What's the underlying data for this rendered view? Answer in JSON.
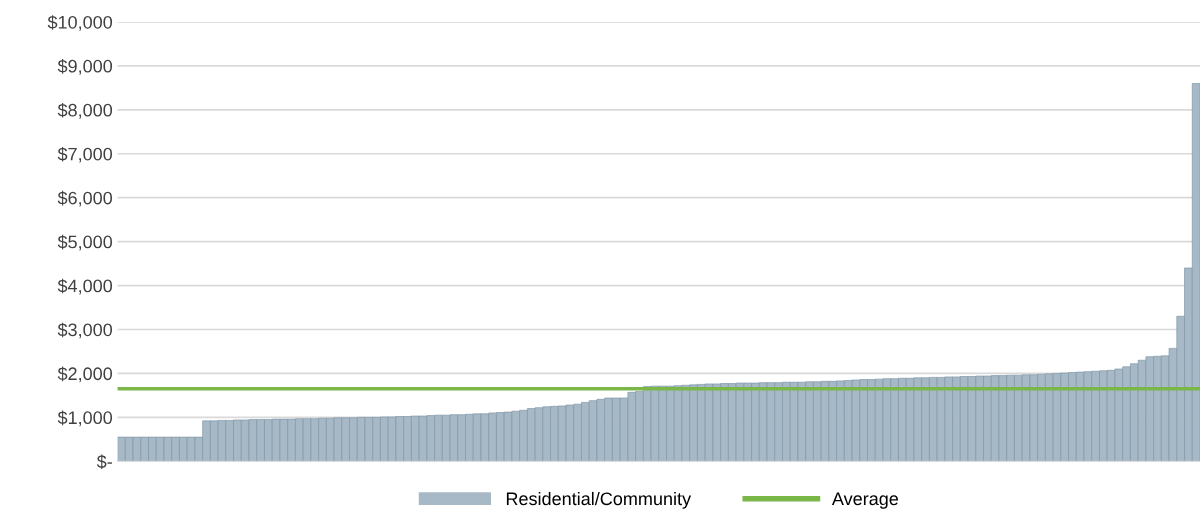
{
  "chart_data": {
    "type": "bar",
    "categories": [
      null,
      null,
      null,
      null,
      null,
      null,
      null,
      null,
      null,
      null,
      null,
      null,
      null,
      null,
      null,
      null,
      null,
      null,
      null,
      null,
      null,
      null,
      null,
      null,
      null,
      null,
      null,
      null,
      null,
      null,
      null,
      null,
      null,
      null,
      null,
      null,
      null,
      null,
      null,
      null,
      null,
      null,
      null,
      null,
      null,
      null,
      null,
      null,
      null,
      null,
      null,
      null,
      null,
      null,
      null,
      null,
      null,
      null,
      null,
      null,
      null,
      null,
      null,
      null,
      null,
      null,
      null,
      null,
      null,
      null,
      null,
      null,
      null,
      null,
      null,
      null,
      null,
      null,
      null,
      null,
      null,
      null,
      null,
      null,
      null,
      null,
      null,
      null,
      null,
      null,
      null,
      null,
      null,
      null,
      null,
      null,
      null,
      null,
      null,
      null,
      null,
      null,
      null,
      null,
      null,
      null,
      null,
      null,
      null,
      null,
      null,
      null,
      null,
      null,
      null,
      null,
      null,
      null,
      null,
      null,
      null,
      null,
      null,
      null,
      null,
      null,
      null,
      null,
      null,
      null,
      null,
      null,
      null,
      null,
      null,
      null,
      null,
      null,
      null,
      null
    ],
    "series": [
      {
        "name": "Residential/Community",
        "color": "#a7b9c6",
        "values": [
          550,
          550,
          550,
          550,
          550,
          550,
          550,
          550,
          550,
          550,
          550,
          920,
          920,
          930,
          930,
          940,
          940,
          950,
          950,
          950,
          960,
          960,
          960,
          970,
          970,
          970,
          980,
          980,
          990,
          990,
          990,
          1000,
          1000,
          1000,
          1010,
          1010,
          1020,
          1020,
          1030,
          1030,
          1040,
          1050,
          1050,
          1060,
          1060,
          1070,
          1080,
          1080,
          1100,
          1110,
          1120,
          1140,
          1160,
          1200,
          1220,
          1240,
          1250,
          1260,
          1280,
          1300,
          1340,
          1380,
          1410,
          1440,
          1440,
          1440,
          1570,
          1590,
          1700,
          1710,
          1710,
          1710,
          1720,
          1730,
          1740,
          1750,
          1760,
          1760,
          1770,
          1770,
          1780,
          1780,
          1780,
          1790,
          1790,
          1790,
          1800,
          1800,
          1800,
          1810,
          1810,
          1820,
          1820,
          1830,
          1840,
          1850,
          1860,
          1860,
          1870,
          1880,
          1880,
          1890,
          1890,
          1900,
          1900,
          1910,
          1910,
          1920,
          1920,
          1930,
          1930,
          1940,
          1940,
          1950,
          1950,
          1960,
          1960,
          1970,
          1970,
          1980,
          1990,
          2000,
          2010,
          2020,
          2030,
          2040,
          2050,
          2060,
          2070,
          2100,
          2150,
          2220,
          2300,
          2380,
          2390,
          2400,
          2570,
          3300,
          4400,
          8600
        ]
      }
    ],
    "ref_lines": [
      {
        "axis": "y",
        "value": 1650,
        "label": "Average",
        "color": "#7ab648"
      }
    ],
    "ylim": [
      0,
      10000
    ],
    "yticks": [
      {
        "value": 0,
        "label": "$-"
      },
      {
        "value": 1000,
        "label": "$1,000"
      },
      {
        "value": 2000,
        "label": "$2,000"
      },
      {
        "value": 3000,
        "label": "$3,000"
      },
      {
        "value": 4000,
        "label": "$4,000"
      },
      {
        "value": 5000,
        "label": "$5,000"
      },
      {
        "value": 6000,
        "label": "$6,000"
      },
      {
        "value": 7000,
        "label": "$7,000"
      },
      {
        "value": 8000,
        "label": "$8,000"
      },
      {
        "value": 9000,
        "label": "$9,000"
      },
      {
        "value": 10000,
        "label": "$10,000"
      }
    ],
    "grid": "y",
    "legend": "bottom"
  }
}
